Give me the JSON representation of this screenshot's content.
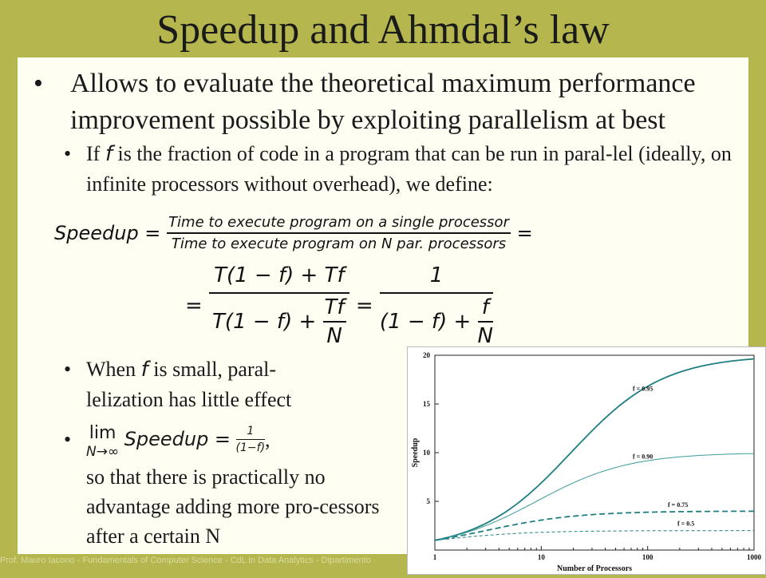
{
  "title": "Speedup and Ahmdal’s law",
  "bullet1": "Allows to evaluate the theoretical maximum performance improvement possible by exploiting parallelism at best",
  "sub1": {
    "a": "If",
    "f": "f",
    "b": "is the fraction of code in a program that can be run in paral-lel (ideally, on infinite processors without overhead), we define:"
  },
  "eq1": {
    "lhs": "Speedup =",
    "num": "Time to execute program on a single processor",
    "den": "Time to execute program on N par. processors",
    "tail": "="
  },
  "eq2": {
    "lead": "=",
    "num1": "T(1 − f) + Tf",
    "den1a": "T(1 − f) +",
    "den1num": "Tf",
    "den1den": "N",
    "mid": "=",
    "num2": "1",
    "den2a": "(1 − f) +",
    "den2num": "f",
    "den2den": "N"
  },
  "sub2": {
    "a": "When",
    "f": "f",
    "b": "is small, paral-lelization has little effect"
  },
  "sub3": {
    "lim": "lim",
    "sub": "N→∞",
    "expr": "Speedup =",
    "num": "1",
    "den": "(1−f)",
    "comma": ",",
    "text": "so that there is practically no advantage adding more pro-cessors after a certain N"
  },
  "footer": "Prof. Mauro Iacono - Fundamentals of Computer Science - CdL in Data Analytics - Dipartimento",
  "chart_data": {
    "type": "line",
    "xscale": "log",
    "xlabel": "Number of Processors",
    "ylabel": "Speedup",
    "xlim": [
      1,
      1000
    ],
    "ylim": [
      0,
      20
    ],
    "xticks": [
      "1",
      "10",
      "100",
      "1000"
    ],
    "yticks": [
      "5",
      "10",
      "15",
      "20"
    ],
    "series": [
      {
        "name": "f = 0.95",
        "f": 0.95,
        "style": "solid-thick",
        "color": "#1f7f80"
      },
      {
        "name": "f = 0.90",
        "f": 0.9,
        "style": "solid-thin",
        "color": "#3a9a9a"
      },
      {
        "name": "f = 0.75",
        "f": 0.75,
        "style": "dashed-thick",
        "color": "#1f7f80"
      },
      {
        "name": "f = 0.5",
        "f": 0.5,
        "style": "dashed-thin",
        "color": "#1f7f80"
      }
    ]
  }
}
